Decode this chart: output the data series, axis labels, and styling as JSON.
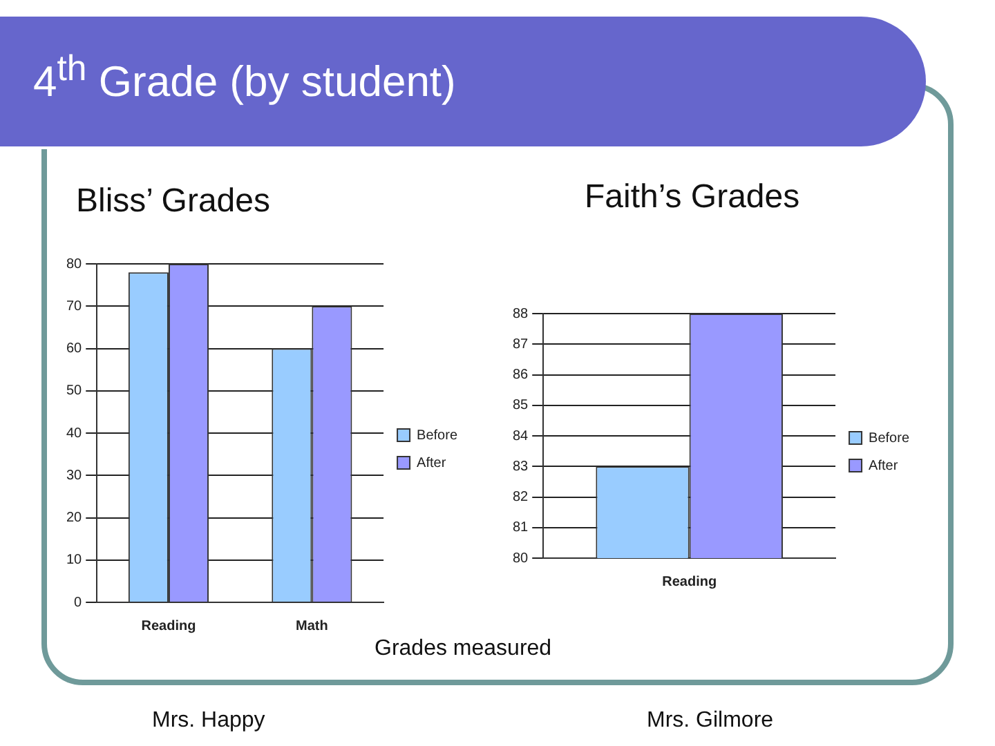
{
  "chart_data": [
    {
      "type": "bar",
      "title": "Bliss’ Grades",
      "categories": [
        "Reading",
        "Math"
      ],
      "series": [
        {
          "name": "Before",
          "color": "#99ccff",
          "values": [
            78,
            60
          ]
        },
        {
          "name": "After",
          "color": "#9999ff",
          "values": [
            80,
            70
          ]
        }
      ],
      "ylim": [
        0,
        80
      ],
      "yticks": [
        0,
        10,
        20,
        30,
        40,
        50,
        60,
        70,
        80
      ],
      "grid": "y",
      "legend": "right",
      "annotations": [
        "4$^{th}$ Grade (by student)",
        "Grades measured",
        "Mrs. Happy"
      ]
    },
    {
      "type": "bar",
      "title": "Faith’s Grades",
      "categories": [
        "Reading"
      ],
      "series": [
        {
          "name": "Before",
          "color": "#99ccff",
          "values": [
            83
          ]
        },
        {
          "name": "After",
          "color": "#9999ff",
          "values": [
            88
          ]
        }
      ],
      "ylim": [
        80,
        88
      ],
      "yticks": [
        80,
        81,
        82,
        83,
        84,
        85,
        86,
        87,
        88
      ],
      "grid": "y",
      "legend": "right",
      "annotations": [
        "Mrs. Gilmore"
      ]
    }
  ]
}
